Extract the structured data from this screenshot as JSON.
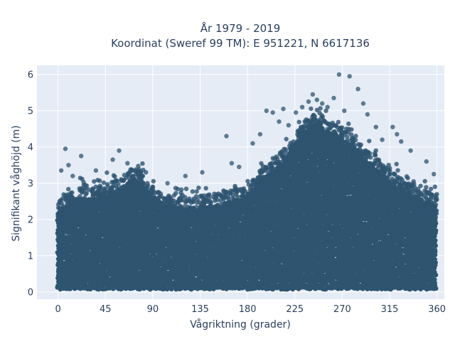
{
  "chart_data": {
    "type": "scatter",
    "title_line1": "År 1979 - 2019",
    "title_line2": "Koordinat (Sweref 99 TM): E 951221, N 6617136",
    "xlabel": "Vågriktning (grader)",
    "ylabel": "Signifikant våghöjd (m)",
    "xlim": [
      -20,
      367
    ],
    "ylim": [
      -0.2,
      6.25
    ],
    "xticks": [
      0,
      45,
      90,
      135,
      180,
      225,
      270,
      315,
      360
    ],
    "yticks": [
      0,
      1,
      2,
      3,
      4,
      5,
      6
    ],
    "grid": true,
    "colors": {
      "marker": "#2e5470",
      "plot_background": "#e5ecf6",
      "grid": "#ffffff",
      "text": "#2a3f5f"
    },
    "envelope": {
      "description": "dense cloud of points; upper edge of the cloud (in data units) as direction vs height",
      "x": [
        0,
        20,
        45,
        60,
        70,
        80,
        90,
        110,
        135,
        160,
        180,
        200,
        215,
        225,
        235,
        245,
        255,
        270,
        285,
        300,
        315,
        330,
        345,
        360
      ],
      "y": [
        2.4,
        2.7,
        2.8,
        3.0,
        3.25,
        3.1,
        2.7,
        2.45,
        2.5,
        2.6,
        2.85,
        3.4,
        3.8,
        4.2,
        4.6,
        4.8,
        4.6,
        4.4,
        4.0,
        3.6,
        3.2,
        2.9,
        2.7,
        2.5
      ]
    },
    "outlier_points": {
      "x": [
        3,
        7,
        10,
        14,
        22,
        26,
        36,
        52,
        58,
        66,
        104,
        121,
        137,
        160,
        165,
        172,
        185,
        192,
        198,
        204,
        210,
        214,
        219,
        226,
        232,
        238,
        242,
        246,
        251,
        256,
        262,
        267,
        272,
        277,
        285,
        290,
        294,
        302,
        308,
        318,
        322,
        326,
        335,
        350,
        357
      ],
      "y": [
        3.35,
        3.95,
        3.5,
        3.2,
        3.75,
        2.95,
        3.35,
        3.65,
        3.9,
        3.55,
        3.0,
        3.2,
        3.3,
        4.3,
        3.55,
        3.45,
        4.1,
        4.35,
        5.0,
        4.95,
        4.7,
        5.05,
        4.6,
        4.95,
        5.1,
        5.25,
        5.45,
        5.3,
        5.2,
        5.1,
        5.35,
        6.0,
        5.0,
        5.95,
        5.6,
        5.2,
        4.9,
        4.55,
        4.2,
        4.55,
        4.35,
        4.15,
        3.9,
        3.6,
        3.25
      ]
    }
  }
}
